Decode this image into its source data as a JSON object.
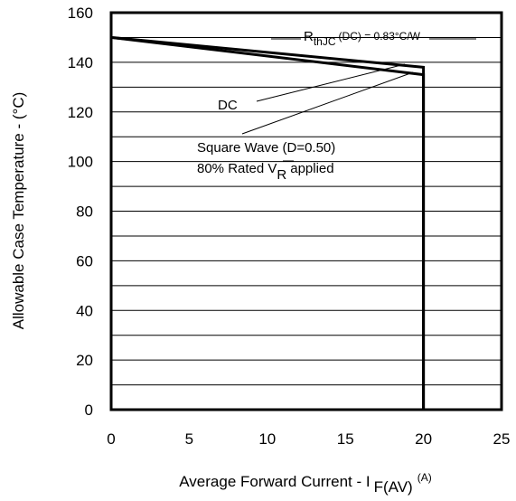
{
  "chart_data": {
    "type": "line",
    "title": "",
    "xlabel": {
      "main": "Average Forward Current - I",
      "subscript": "F(AV)",
      "unit": "(A)"
    },
    "ylabel": "Allowable Case Temperature - (°C)",
    "xlim": [
      0,
      25
    ],
    "ylim": [
      0,
      160
    ],
    "x_ticks": [
      "0",
      "5",
      "10",
      "15",
      "20",
      "25"
    ],
    "y_ticks": [
      "0",
      "20",
      "40",
      "60",
      "80",
      "100",
      "120",
      "140",
      "160"
    ],
    "grid": "horizontal",
    "series": [
      {
        "name": "DC",
        "color": "#000000",
        "points": [
          [
            0,
            150
          ],
          [
            20,
            138
          ],
          [
            20,
            0
          ]
        ]
      },
      {
        "name": "Square Wave (D=0.50) 80% Rated VR applied",
        "color": "#000000",
        "points": [
          [
            0,
            150
          ],
          [
            20,
            135
          ],
          [
            20,
            0
          ]
        ]
      }
    ],
    "annotations": {
      "rthjc": {
        "prefix": "R",
        "subscript": "thJC",
        "text": "(DC) = 0.83°C/W"
      },
      "dc": {
        "text": "DC"
      },
      "square_wave": {
        "line1": "Square Wave (D=0.50)",
        "line2_prefix": "80% Rated V",
        "line2_subscript": "R",
        "line2_suffix": "applied"
      }
    }
  }
}
